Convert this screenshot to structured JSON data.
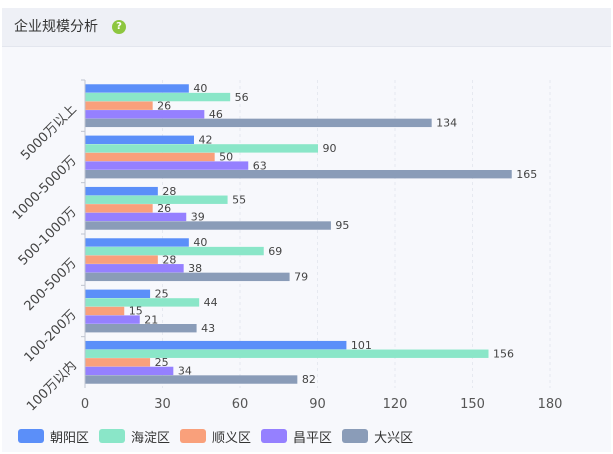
{
  "panel": {
    "title": "企业规模分析",
    "help_icon": "question-circle-icon"
  },
  "colors": {
    "panel_bg": "#f7f8fc",
    "header_bg": "#eef0f6",
    "help": "#8dc63f"
  },
  "chart_data": {
    "type": "bar",
    "orientation": "horizontal",
    "categories": [
      "100万以内",
      "100-200万",
      "200-500万",
      "500-1000万",
      "1000-5000万",
      "5000万以上"
    ],
    "series": [
      {
        "name": "朝阳区",
        "color": "#5b8ff9",
        "values": [
          101,
          25,
          40,
          28,
          42,
          40
        ]
      },
      {
        "name": "海淀区",
        "color": "#8ae6c8",
        "values": [
          156,
          44,
          69,
          55,
          90,
          56
        ]
      },
      {
        "name": "顺义区",
        "color": "#f9a07b",
        "values": [
          25,
          15,
          28,
          26,
          50,
          26
        ]
      },
      {
        "name": "昌平区",
        "color": "#9580ff",
        "values": [
          34,
          21,
          38,
          39,
          63,
          46
        ]
      },
      {
        "name": "大兴区",
        "color": "#8a9cb8",
        "values": [
          82,
          43,
          79,
          95,
          165,
          134
        ]
      }
    ],
    "xlim": [
      0,
      180
    ],
    "xticks": [
      0,
      30,
      60,
      90,
      120,
      150,
      180
    ],
    "grid": true,
    "legend": "bottom-left"
  }
}
